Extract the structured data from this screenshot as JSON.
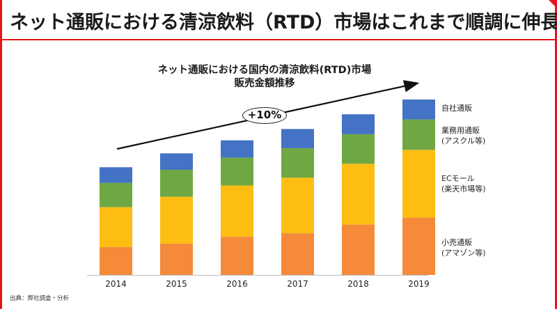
{
  "slide": {
    "title": "ネット通販における清涼飲料（RTD）市場はこれまで順調に伸長",
    "source": "出典：弊社調査・分析"
  },
  "chart_data": {
    "type": "bar",
    "stacked": true,
    "title_lines": [
      "ネット通販における国内の清涼飲料(RTD)市場",
      "販売金額推移"
    ],
    "categories": [
      "2014",
      "2015",
      "2016",
      "2017",
      "2018",
      "2019"
    ],
    "series": [
      {
        "name": "小売通販(アマゾン等)",
        "legend_lines": [
          "小売通販",
          "(アマゾン等)"
        ],
        "color": "#f48a3a",
        "values": [
          32,
          36,
          44,
          48,
          58,
          66
        ]
      },
      {
        "name": "ECモール(楽天市場等)",
        "legend_lines": [
          "ECモール",
          "(楽天市場等)"
        ],
        "color": "#fdbd13",
        "values": [
          46,
          54,
          59,
          64,
          70,
          78
        ]
      },
      {
        "name": "業務用通販(アスクル等)",
        "legend_lines": [
          "業務用通販",
          "(アスクル等)"
        ],
        "color": "#6fa843",
        "values": [
          28,
          31,
          32,
          34,
          34,
          35
        ]
      },
      {
        "name": "自社通販",
        "legend_lines": [
          "自社通販"
        ],
        "color": "#4472c4",
        "values": [
          18,
          19,
          20,
          22,
          23,
          23
        ]
      }
    ],
    "ylim": [
      0,
      210
    ],
    "annotation": {
      "label": "+10%"
    }
  }
}
